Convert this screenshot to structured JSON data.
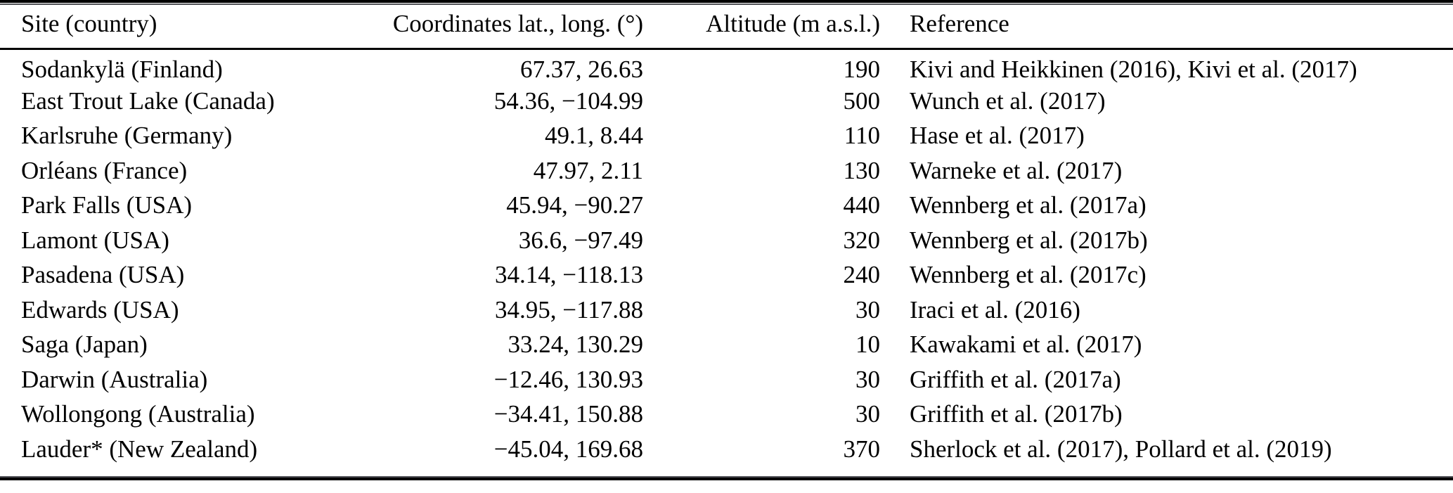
{
  "page": {
    "background_color": "#ffffff",
    "ink_color": "#000000"
  },
  "table": {
    "columns": [
      "Site (country)",
      "Coordinates lat., long. (°)",
      "Altitude (m a.s.l.)",
      "Reference"
    ],
    "rows": [
      {
        "site": "Sodankylä (Finland)",
        "coordinates": "67.37, 26.63",
        "altitude": "190",
        "reference": "Kivi and Heikkinen (2016), Kivi et al. (2017)"
      },
      {
        "site": "East Trout Lake (Canada)",
        "coordinates": "54.36, −104.99",
        "altitude": "500",
        "reference": "Wunch et al. (2017)"
      },
      {
        "site": "Karlsruhe (Germany)",
        "coordinates": "49.1, 8.44",
        "altitude": "110",
        "reference": "Hase et al. (2017)"
      },
      {
        "site": "Orléans (France)",
        "coordinates": "47.97, 2.11",
        "altitude": "130",
        "reference": "Warneke et al. (2017)"
      },
      {
        "site": "Park Falls (USA)",
        "coordinates": "45.94, −90.27",
        "altitude": "440",
        "reference": "Wennberg et al. (2017a)"
      },
      {
        "site": "Lamont (USA)",
        "coordinates": "36.6, −97.49",
        "altitude": "320",
        "reference": "Wennberg et al. (2017b)"
      },
      {
        "site": "Pasadena (USA)",
        "coordinates": "34.14, −118.13",
        "altitude": "240",
        "reference": "Wennberg et al. (2017c)"
      },
      {
        "site": "Edwards (USA)",
        "coordinates": "34.95, −117.88",
        "altitude": "30",
        "reference": "Iraci et al. (2016)"
      },
      {
        "site": "Saga (Japan)",
        "coordinates": "33.24, 130.29",
        "altitude": "10",
        "reference": "Kawakami et al. (2017)"
      },
      {
        "site": "Darwin (Australia)",
        "coordinates": "−12.46, 130.93",
        "altitude": "30",
        "reference": "Griffith et al. (2017a)"
      },
      {
        "site": "Wollongong (Australia)",
        "coordinates": "−34.41, 150.88",
        "altitude": "30",
        "reference": "Griffith et al. (2017b)"
      },
      {
        "site": "Lauder* (New Zealand)",
        "coordinates": "−45.04, 169.68",
        "altitude": "370",
        "reference": "Sherlock et al. (2017), Pollard et al. (2019)"
      }
    ]
  }
}
